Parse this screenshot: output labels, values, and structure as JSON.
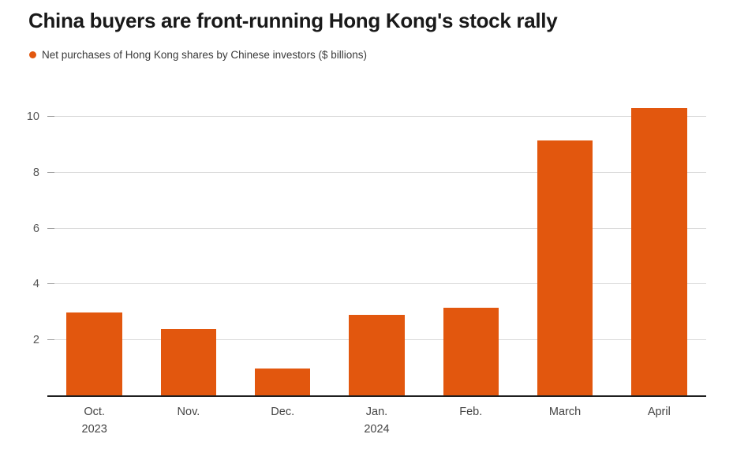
{
  "title": "China buyers are front-running Hong Kong's stock rally",
  "legend": {
    "label": "Net purchases of Hong Kong shares by Chinese investors ($ billions)"
  },
  "colors": {
    "bar": "#e2570e",
    "title_text": "#191919",
    "legend_text": "#3a3a3a",
    "axis_text": "#555555",
    "gridline": "#d9d9d9",
    "baseline": "#1f1f1f",
    "background": "#ffffff"
  },
  "chart_data": {
    "type": "bar",
    "title": "China buyers are front-running Hong Kong's stock rally",
    "subtitle": "Net purchases of Hong Kong shares by Chinese investors ($ billions)",
    "categories": [
      "Oct.",
      "Nov.",
      "Dec.",
      "Jan.",
      "Feb.",
      "March",
      "April"
    ],
    "category_sublabels": [
      "2023",
      "",
      "",
      "2024",
      "",
      "",
      ""
    ],
    "values": [
      3.0,
      2.4,
      1.0,
      2.9,
      3.15,
      9.15,
      10.3
    ],
    "xlabel": "",
    "ylabel": "",
    "yticks": [
      2,
      4,
      6,
      8,
      10
    ],
    "ylim": [
      0,
      10.9
    ],
    "grid": true,
    "legend_position": "top-left",
    "bar_color": "#e2570e"
  }
}
